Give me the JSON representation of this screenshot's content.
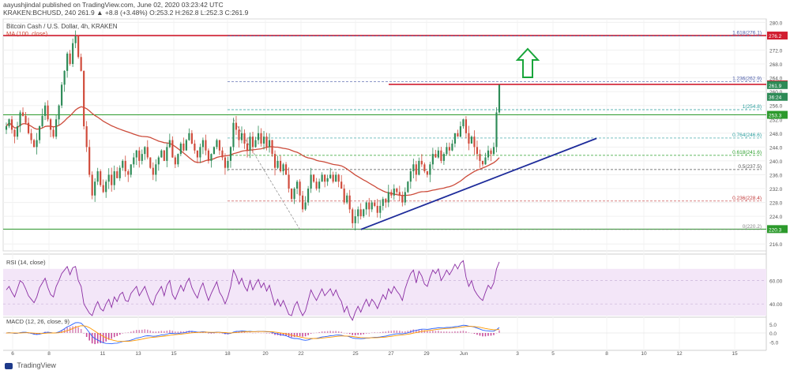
{
  "header": {
    "publisher_line": "aayushjindal published on TradingView.com, June 02, 2020 03:23:42 UTC",
    "symbol_line": "KRAKEN:BCHUSD, 240  261.9  ▲ +8.8 (+3.48%)  O:253.2  H:262.8  L:252.3  C:261.9",
    "chart_title": "Bitcoin Cash / U.S. Dollar, 4h, KRAKEN",
    "ma_label": "MA (100, close)"
  },
  "footer": {
    "brand": "TradingView"
  },
  "colors": {
    "up": "#2e8b57",
    "down": "#d04a3a",
    "ma": "#cc4b3a",
    "trend": "#1d2b9a",
    "support": "#2c9a2c",
    "resistance": "#d11d2f",
    "rsi": "#8b2ea3",
    "macd_line": "#2962ff",
    "signal_line": "#ff9800",
    "arrow": "#18a53a"
  },
  "chart_data": {
    "type": "candlestick",
    "y_axis": {
      "ticks": [
        216.0,
        220.0,
        224.0,
        228.0,
        232.0,
        236.0,
        240.0,
        244.0,
        248.0,
        252.0,
        256.0,
        260.0,
        264.0,
        268.0,
        272.0,
        276.0,
        280.0
      ],
      "range": [
        214,
        281
      ]
    },
    "x_axis": {
      "ticks": [
        "6",
        "8",
        "11",
        "13",
        "15",
        "18",
        "20",
        "22",
        "25",
        "27",
        "29",
        "Jun",
        "3",
        "5",
        "8",
        "10",
        "12",
        "15"
      ]
    },
    "price_labels": [
      {
        "value": 276.2,
        "text": "276.2",
        "color": "#d11d2f"
      },
      {
        "value": 262.1,
        "text": "262.1",
        "color": "#d11d2f"
      },
      {
        "value": 261.9,
        "text": "261.9",
        "color": "#2e8b57"
      },
      {
        "value": 258.5,
        "text": "36:24",
        "color": "#2e8b57"
      },
      {
        "value": 253.3,
        "text": "253.3",
        "color": "#2c9a2c"
      },
      {
        "value": 220.3,
        "text": "220.3",
        "color": "#2c9a2c"
      }
    ],
    "horizontal_levels": [
      {
        "name": "resistance",
        "value": 276.2
      },
      {
        "name": "resistance-2",
        "value": 262.1
      },
      {
        "name": "support",
        "value": 253.3
      },
      {
        "name": "support-2",
        "value": 220.3
      }
    ],
    "fibonacci": [
      {
        "label": "1.618(276.1)",
        "value": 276.1
      },
      {
        "label": "1.236(262.9)",
        "value": 262.9
      },
      {
        "label": "1(254.8)",
        "value": 254.8
      },
      {
        "label": "0.764(246.6)",
        "value": 246.6
      },
      {
        "label": "0.618(241.6)",
        "value": 241.6
      },
      {
        "label": "0.5(237.5)",
        "value": 237.5
      },
      {
        "label": "0.236(228.4)",
        "value": 228.4
      },
      {
        "label": "0(220.2)",
        "value": 220.2
      }
    ],
    "trendline": {
      "start": {
        "x_index": 128,
        "value": 220.2
      },
      "end": {
        "x_index": 196,
        "value": 246.5
      }
    },
    "fib_swing": {
      "start": {
        "x_index": 82,
        "value": 252.0
      },
      "end": {
        "x_index": 106,
        "value": 220.2
      }
    },
    "closes": [
      250,
      252,
      249,
      247,
      250,
      254,
      253,
      251,
      248,
      246,
      244,
      246,
      250,
      253,
      256,
      252,
      249,
      247,
      252,
      256,
      262,
      266,
      271,
      268,
      274,
      276,
      270,
      266,
      250,
      244,
      236,
      230,
      234,
      237,
      233,
      231,
      234,
      236,
      233,
      237,
      235,
      238,
      240,
      237,
      236,
      239,
      241,
      243,
      240,
      242,
      244,
      241,
      238,
      236,
      239,
      241,
      243,
      240,
      244,
      246,
      241,
      239,
      242,
      245,
      243,
      246,
      248,
      245,
      243,
      241,
      244,
      246,
      243,
      240,
      242,
      244,
      246,
      243,
      241,
      238,
      240,
      244,
      251,
      249,
      246,
      248,
      245,
      243,
      247,
      244,
      246,
      248,
      245,
      247,
      244,
      246,
      242,
      238,
      240,
      237,
      239,
      236,
      232,
      229,
      232,
      234,
      230,
      226,
      228,
      232,
      236,
      234,
      232,
      234,
      236,
      234,
      235,
      236,
      234,
      236,
      234,
      232,
      228,
      230,
      226,
      222,
      224,
      226,
      224,
      226,
      228,
      226,
      228,
      227,
      225,
      227,
      229,
      228,
      231,
      230,
      232,
      231,
      230,
      228,
      231,
      234,
      237,
      239,
      236,
      240,
      239,
      237,
      236,
      239,
      242,
      241,
      243,
      240,
      242,
      244,
      243,
      245,
      248,
      247,
      250,
      252,
      248,
      245,
      247,
      244,
      242,
      240,
      239,
      241,
      243,
      242,
      244,
      254,
      262
    ]
  },
  "rsi": {
    "title": "RSI (14, close)",
    "ticks": [
      "60.00",
      "40.00"
    ],
    "range": [
      30,
      80
    ],
    "band": [
      30,
      70
    ],
    "values": [
      52,
      55,
      50,
      46,
      53,
      60,
      58,
      53,
      47,
      44,
      41,
      46,
      54,
      58,
      62,
      54,
      48,
      46,
      55,
      60,
      66,
      69,
      72,
      65,
      71,
      72,
      60,
      55,
      40,
      36,
      32,
      30,
      37,
      42,
      36,
      34,
      40,
      44,
      37,
      46,
      42,
      48,
      50,
      43,
      42,
      49,
      52,
      55,
      47,
      51,
      55,
      48,
      42,
      39,
      47,
      51,
      55,
      47,
      56,
      60,
      48,
      44,
      50,
      56,
      51,
      58,
      62,
      54,
      49,
      45,
      53,
      58,
      50,
      43,
      49,
      54,
      59,
      50,
      46,
      40,
      46,
      55,
      69,
      64,
      57,
      62,
      55,
      51,
      60,
      52,
      57,
      61,
      54,
      58,
      51,
      56,
      47,
      39,
      44,
      38,
      43,
      37,
      31,
      30,
      38,
      42,
      35,
      30,
      34,
      43,
      52,
      47,
      43,
      48,
      53,
      47,
      50,
      53,
      47,
      52,
      46,
      42,
      33,
      38,
      30,
      26,
      33,
      38,
      33,
      39,
      44,
      38,
      44,
      41,
      36,
      42,
      48,
      44,
      53,
      49,
      55,
      51,
      48,
      43,
      53,
      60,
      66,
      69,
      58,
      68,
      64,
      57,
      55,
      63,
      69,
      66,
      70,
      60,
      64,
      69,
      65,
      69,
      74,
      70,
      75,
      77,
      63,
      55,
      60,
      52,
      48,
      45,
      43,
      50,
      56,
      53,
      58,
      70,
      76
    ]
  },
  "macd": {
    "title": "MACD (12, 26, close, 9)",
    "ticks": [
      "5.0",
      "0.0",
      "-5.0"
    ],
    "range": [
      -8,
      8
    ]
  }
}
